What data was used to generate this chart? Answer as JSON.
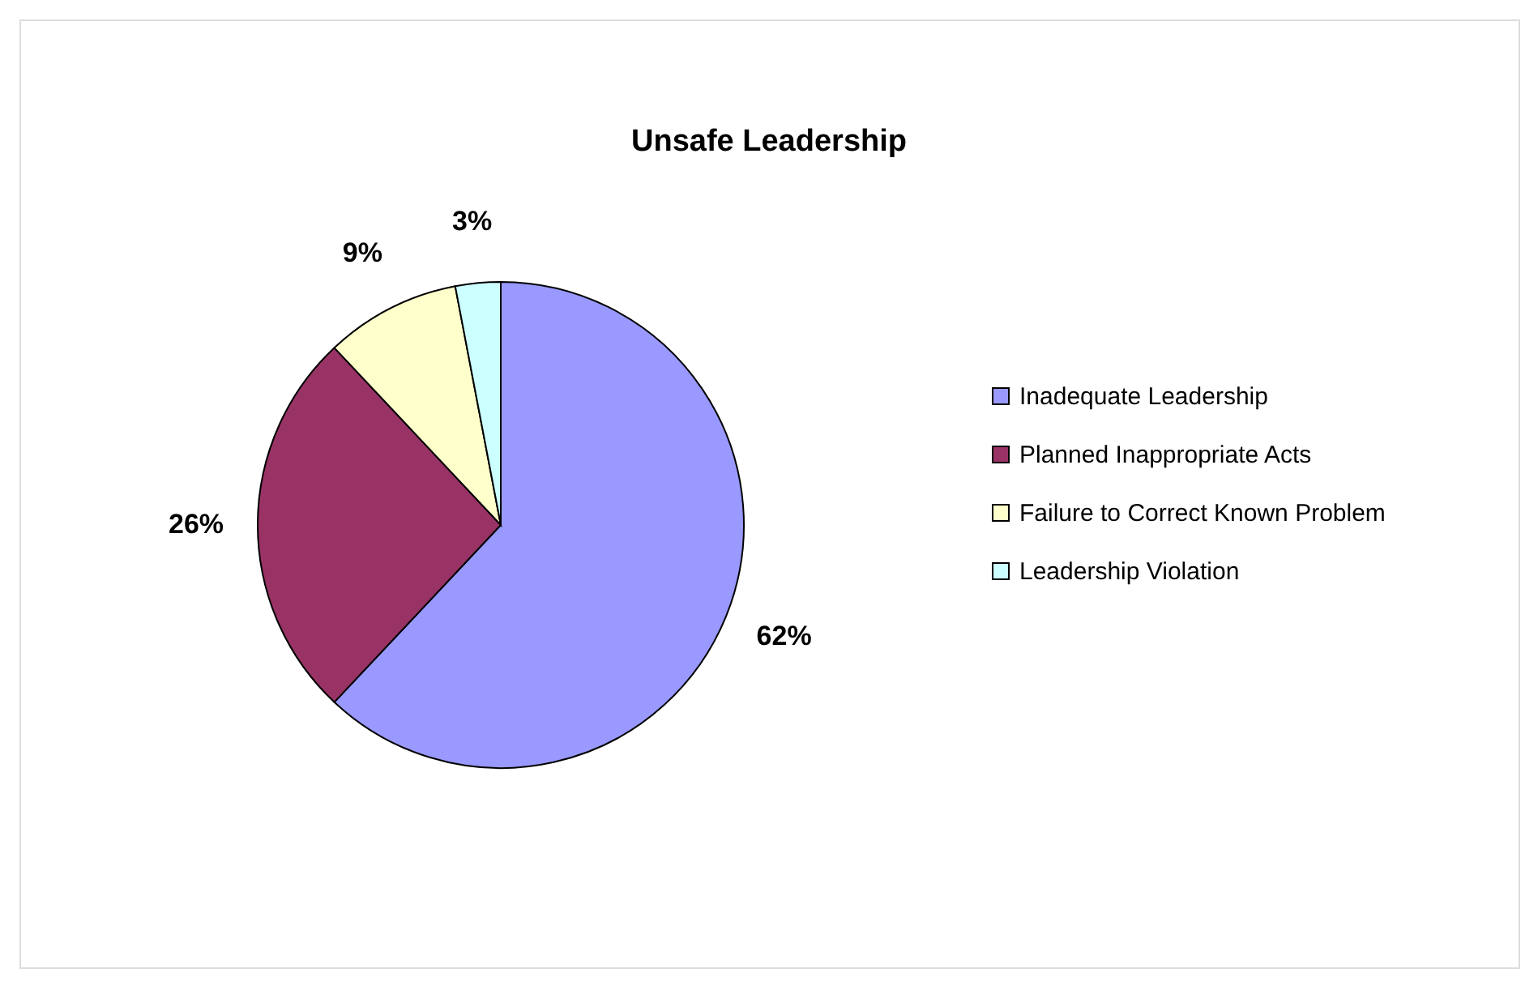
{
  "chart_data": {
    "type": "pie",
    "title": "Unsafe Leadership",
    "categories": [
      "Inadequate Leadership",
      "Planned Inappropriate Acts",
      "Failure to Correct Known Problem",
      "Leadership Violation"
    ],
    "values": [
      62,
      26,
      9,
      3
    ],
    "value_labels": [
      "62%",
      "26%",
      "9%",
      "3%"
    ],
    "colors": [
      "#9999ff",
      "#993366",
      "#ffffcc",
      "#ccffff"
    ],
    "legend": "right"
  }
}
